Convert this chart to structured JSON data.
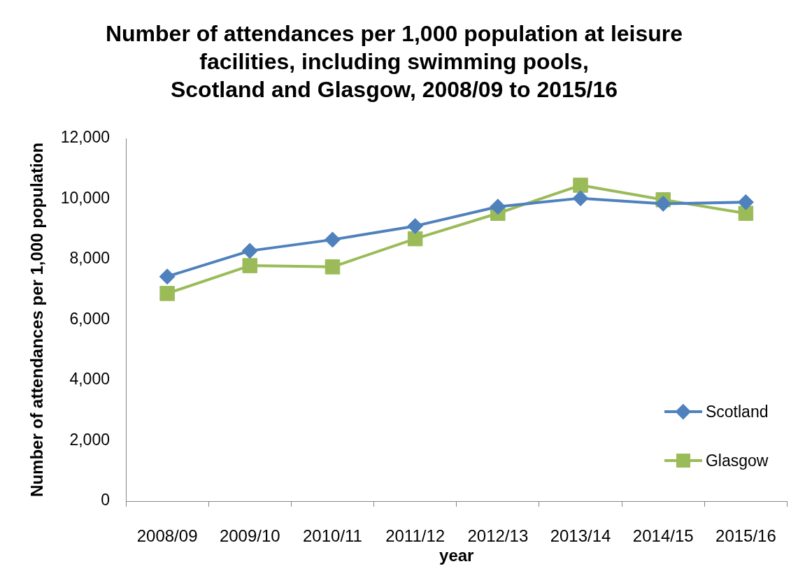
{
  "chart_data": {
    "type": "line",
    "title": "Number of attendances per 1,000 population at leisure\nfacilities, including swimming pools,\nScotland and Glasgow, 2008/09 to 2015/16",
    "xlabel": "year",
    "ylabel": "Number of attendances per 1,000 population",
    "categories": [
      "2008/09",
      "2009/10",
      "2010/11",
      "2011/12",
      "2012/13",
      "2013/14",
      "2014/15",
      "2015/16"
    ],
    "series": [
      {
        "name": "Scotland",
        "color": "#4f81bd",
        "marker": "diamond",
        "values": [
          7430,
          8280,
          8650,
          9100,
          9740,
          10020,
          9840,
          9890
        ]
      },
      {
        "name": "Glasgow",
        "color": "#9bbb59",
        "marker": "square",
        "values": [
          6870,
          7790,
          7750,
          8680,
          9520,
          10450,
          9970,
          9520
        ]
      }
    ],
    "ylim": [
      0,
      12000
    ],
    "yticks": [
      0,
      {
        "value": 2000,
        "label": "2,000"
      },
      {
        "value": 4000,
        "label": "4,000"
      },
      {
        "value": 6000,
        "label": "6,000"
      },
      {
        "value": 8000,
        "label": "8,000"
      },
      {
        "value": 10000,
        "label": "10,000"
      },
      {
        "value": 12000,
        "label": "12,000"
      }
    ],
    "legend": "bottom right",
    "line_style": "solid"
  }
}
